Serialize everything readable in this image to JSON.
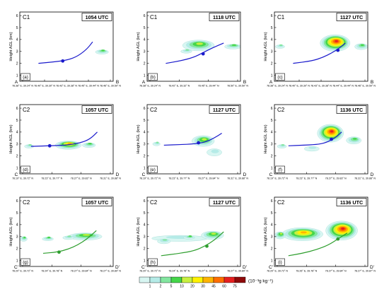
{
  "chart_data": {
    "type": "contour",
    "ylabel": "Height AGL (km)",
    "y_ticks": [
      "1",
      "2",
      "3",
      "4",
      "5",
      "6"
    ],
    "ylim": [
      0.5,
      6.3
    ],
    "colorbar": {
      "unit": "(10⁻³g kg⁻¹)",
      "ticks": [
        "1",
        "2",
        "5",
        "10",
        "20",
        "30",
        "45",
        "60",
        "75"
      ],
      "colors": [
        "#d8f6f2",
        "#b5ebe7",
        "#83e6a0",
        "#45d64a",
        "#c8f040",
        "#fff200",
        "#ffb400",
        "#ff6e00",
        "#e62020",
        "#8e0a0a"
      ]
    },
    "panels": [
      {
        "id": "C1",
        "time": "1054 UTC",
        "letter": "(a)",
        "end_left": "A",
        "end_right": "B",
        "x_ticks": [
          "78.38° E, 39.24° N",
          "78.40° E, 39.30° N",
          "78.43° E, 39.38° N",
          "78.45° E, 39.44° N",
          "78.46° E, 39.50° N"
        ],
        "track_color": "#1a1acc",
        "track": [
          [
            0.2,
            2.0
          ],
          [
            0.4,
            2.15
          ],
          [
            0.52,
            2.3
          ],
          [
            0.62,
            2.6
          ],
          [
            0.72,
            3.2
          ],
          [
            0.78,
            3.8
          ]
        ],
        "marker": [
          0.46,
          2.2
        ],
        "echoes": [
          {
            "x": 0.88,
            "y": 2.95,
            "rx": 0.07,
            "ry": 0.18,
            "peak": 3
          }
        ]
      },
      {
        "id": "C1",
        "time": "1118 UTC",
        "letter": "(b)",
        "end_left": "A",
        "end_right": "B",
        "x_ticks": [
          "78.38° E, 39.24° N",
          "78.42° E, 39.32° N",
          "78.45° E, 39.44° N",
          "78.50° E, 39.50° N"
        ],
        "track_color": "#1a1acc",
        "track": [
          [
            0.2,
            2.0
          ],
          [
            0.35,
            2.2
          ],
          [
            0.5,
            2.5
          ],
          [
            0.6,
            2.9
          ],
          [
            0.7,
            3.3
          ],
          [
            0.82,
            3.7
          ]
        ],
        "marker": [
          0.6,
          2.8
        ],
        "echoes": [
          {
            "x": 0.55,
            "y": 3.5,
            "rx": 0.17,
            "ry": 0.45,
            "peak": 4
          },
          {
            "x": 0.92,
            "y": 3.4,
            "rx": 0.09,
            "ry": 0.2,
            "peak": 3
          },
          {
            "x": 0.42,
            "y": 3.0,
            "rx": 0.06,
            "ry": 0.15,
            "peak": 2
          }
        ]
      },
      {
        "id": "C1",
        "time": "1127 UTC",
        "letter": "(c)",
        "end_left": "A",
        "end_right": "B",
        "x_ticks": [
          "78.38° E, 39.24° N",
          "78.40° E, 39.30° N",
          "78.43° E, 39.38° N",
          "78.44° E, 39.44° N",
          "78.46° E, 39.50° N"
        ],
        "track_color": "#1a1acc",
        "track": [
          [
            0.2,
            2.0
          ],
          [
            0.4,
            2.2
          ],
          [
            0.52,
            2.5
          ],
          [
            0.62,
            2.9
          ],
          [
            0.7,
            3.3
          ],
          [
            0.76,
            3.7
          ]
        ],
        "marker": [
          0.68,
          3.1
        ],
        "echoes": [
          {
            "x": 0.65,
            "y": 3.7,
            "rx": 0.16,
            "ry": 0.7,
            "peak": 8
          },
          {
            "x": 0.93,
            "y": 3.4,
            "rx": 0.07,
            "ry": 0.25,
            "peak": 3
          },
          {
            "x": 0.06,
            "y": 3.4,
            "rx": 0.05,
            "ry": 0.15,
            "peak": 2
          }
        ]
      },
      {
        "id": "C2",
        "time": "1057 UTC",
        "letter": "(d)",
        "end_left": "C",
        "end_right": "D",
        "x_ticks": [
          "78.19° E, 39.72° N",
          "78.23° E, 39.77° N",
          "78.27° E, 39.83° N",
          "78.31° E, 39.88° N"
        ],
        "track_color": "#1a1acc",
        "track": [
          [
            0.12,
            2.8
          ],
          [
            0.3,
            2.85
          ],
          [
            0.5,
            2.9
          ],
          [
            0.65,
            3.1
          ],
          [
            0.75,
            3.4
          ],
          [
            0.83,
            4.0
          ]
        ],
        "marker": [
          0.32,
          2.85
        ],
        "echoes": [
          {
            "x": 0.52,
            "y": 2.9,
            "rx": 0.14,
            "ry": 0.35,
            "peak": 6
          },
          {
            "x": 0.1,
            "y": 2.8,
            "rx": 0.05,
            "ry": 0.15,
            "peak": 2
          },
          {
            "x": 0.74,
            "y": 2.9,
            "rx": 0.07,
            "ry": 0.2,
            "peak": 3
          }
        ]
      },
      {
        "id": "C2",
        "time": "1127 UTC",
        "letter": "(e)",
        "end_left": "C",
        "end_right": "D",
        "x_ticks": [
          "78.19° E, 39.72° N",
          "78.23° E, 39.77° N",
          "78.27° E, 39.84° N",
          "78.31° E, 39.88° N"
        ],
        "track_color": "#1a1acc",
        "track": [
          [
            0.18,
            2.9
          ],
          [
            0.35,
            2.95
          ],
          [
            0.5,
            3.0
          ],
          [
            0.62,
            3.15
          ],
          [
            0.72,
            3.5
          ],
          [
            0.8,
            3.9
          ]
        ],
        "marker": [
          0.55,
          3.1
        ],
        "echoes": [
          {
            "x": 0.6,
            "y": 3.25,
            "rx": 0.12,
            "ry": 0.45,
            "peak": 4
          },
          {
            "x": 0.1,
            "y": 3.0,
            "rx": 0.04,
            "ry": 0.15,
            "peak": 2
          },
          {
            "x": 0.72,
            "y": 2.3,
            "rx": 0.08,
            "ry": 0.3,
            "peak": 1
          }
        ]
      },
      {
        "id": "C2",
        "time": "1136 UTC",
        "letter": "(f)",
        "end_left": "C",
        "end_right": "D",
        "x_ticks": [
          "78.19° E, 39.72° N",
          "78.23° E, 39.77° N",
          "78.27° E, 39.83° N",
          "78.31° E, 39.88° N"
        ],
        "track_color": "#1a1acc",
        "track": [
          [
            0.15,
            2.85
          ],
          [
            0.3,
            2.9
          ],
          [
            0.45,
            2.95
          ],
          [
            0.55,
            3.1
          ],
          [
            0.65,
            3.5
          ],
          [
            0.72,
            4.0
          ]
        ],
        "marker": [
          0.61,
          3.4
        ],
        "echoes": [
          {
            "x": 0.6,
            "y": 3.9,
            "rx": 0.14,
            "ry": 0.75,
            "peak": 8
          },
          {
            "x": 0.85,
            "y": 3.3,
            "rx": 0.08,
            "ry": 0.3,
            "peak": 3
          },
          {
            "x": 0.08,
            "y": 2.8,
            "rx": 0.05,
            "ry": 0.15,
            "peak": 2
          },
          {
            "x": 0.4,
            "y": 2.6,
            "rx": 0.08,
            "ry": 0.2,
            "peak": 1
          }
        ]
      },
      {
        "id": "C2",
        "time": "1057 UTC",
        "letter": "(g)",
        "end_left": "C'",
        "end_right": "D'",
        "x_ticks": [
          "78.20° E, 39.72° N",
          "78.24° E, 39.78° N",
          "78.27° E, 39.84° N",
          "78.27° E, 39.89° N"
        ],
        "track_color": "#2e9e2e",
        "track": [
          [
            0.25,
            1.6
          ],
          [
            0.4,
            1.7
          ],
          [
            0.52,
            1.95
          ],
          [
            0.62,
            2.3
          ],
          [
            0.72,
            2.8
          ],
          [
            0.82,
            3.5
          ]
        ],
        "marker": [
          0.42,
          1.7
        ],
        "echoes": [
          {
            "x": 0.04,
            "y": 2.8,
            "rx": 0.04,
            "ry": 0.2,
            "peak": 3
          },
          {
            "x": 0.3,
            "y": 2.8,
            "rx": 0.06,
            "ry": 0.15,
            "peak": 3
          },
          {
            "x": 0.7,
            "y": 3.0,
            "rx": 0.18,
            "ry": 0.3,
            "peak": 4
          },
          {
            "x": 0.52,
            "y": 2.9,
            "rx": 0.06,
            "ry": 0.15,
            "peak": 2
          }
        ]
      },
      {
        "id": "C2",
        "time": "1127 UTC",
        "letter": "(h)",
        "end_left": "C'",
        "end_right": "D'",
        "x_ticks": [
          "78.20° E, 39.72° N",
          "78.24° E, 39.78° N",
          "78.27° E, 39.84° N",
          "78.27° E, 39.89° N"
        ],
        "track_color": "#2e9e2e",
        "track": [
          [
            0.15,
            1.4
          ],
          [
            0.35,
            1.6
          ],
          [
            0.5,
            1.8
          ],
          [
            0.62,
            2.2
          ],
          [
            0.72,
            2.7
          ],
          [
            0.82,
            3.4
          ]
        ],
        "marker": [
          0.64,
          2.2
        ],
        "echoes": [
          {
            "x": 0.35,
            "y": 2.85,
            "rx": 0.3,
            "ry": 0.25,
            "peak": 1
          },
          {
            "x": 0.45,
            "y": 2.9,
            "rx": 0.06,
            "ry": 0.12,
            "peak": 3
          },
          {
            "x": 0.7,
            "y": 3.1,
            "rx": 0.12,
            "ry": 0.35,
            "peak": 4
          },
          {
            "x": 0.18,
            "y": 2.6,
            "rx": 0.07,
            "ry": 0.2,
            "peak": 2
          }
        ]
      },
      {
        "id": "C2",
        "time": "1136 UTC",
        "letter": "(i)",
        "end_left": "C'",
        "end_right": "D'",
        "x_ticks": [
          "78.20° E, 39.72° N",
          "78.26° E, 39.78° N",
          "78.27° E, 39.84° N",
          "78.27° E, 39.87° N"
        ],
        "track_color": "#2e9e2e",
        "track": [
          [
            0.15,
            1.4
          ],
          [
            0.3,
            1.6
          ],
          [
            0.45,
            1.9
          ],
          [
            0.58,
            2.3
          ],
          [
            0.68,
            2.8
          ],
          [
            0.78,
            3.3
          ]
        ],
        "marker": [
          0.68,
          2.8
        ],
        "echoes": [
          {
            "x": 0.72,
            "y": 3.5,
            "rx": 0.17,
            "ry": 0.8,
            "peak": 8
          },
          {
            "x": 0.3,
            "y": 3.2,
            "rx": 0.22,
            "ry": 0.55,
            "peak": 6
          },
          {
            "x": 0.06,
            "y": 3.1,
            "rx": 0.06,
            "ry": 0.3,
            "peak": 4
          }
        ]
      }
    ]
  }
}
